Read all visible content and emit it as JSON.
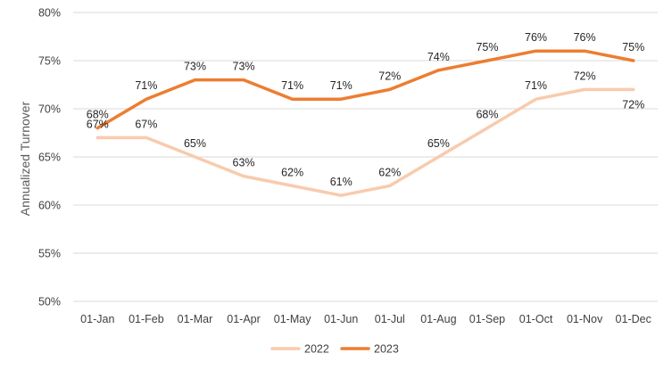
{
  "chart_data": {
    "type": "line",
    "categories": [
      "01-Jan",
      "01-Feb",
      "01-Mar",
      "01-Apr",
      "01-May",
      "01-Jun",
      "01-Jul",
      "01-Aug",
      "01-Sep",
      "01-Oct",
      "01-Nov",
      "01-Dec"
    ],
    "series": [
      {
        "name": "2022",
        "color": "#f8cbad",
        "values": [
          67,
          67,
          65,
          63,
          62,
          61,
          62,
          65,
          68,
          71,
          72,
          72
        ],
        "labels": [
          "67%",
          "67%",
          "65%",
          "63%",
          "62%",
          "61%",
          "62%",
          "65%",
          "68%",
          "71%",
          "72%",
          "72%"
        ],
        "label_position": [
          "above",
          "above",
          "above",
          "above",
          "above",
          "above",
          "above",
          "above",
          "above",
          "above",
          "above",
          "below"
        ]
      },
      {
        "name": "2023",
        "color": "#ed7d31",
        "values": [
          68,
          71,
          73,
          73,
          71,
          71,
          72,
          74,
          75,
          76,
          76,
          75
        ],
        "labels": [
          "68%",
          "71%",
          "73%",
          "73%",
          "71%",
          "71%",
          "72%",
          "74%",
          "75%",
          "76%",
          "76%",
          "75%"
        ],
        "label_position": [
          "above",
          "above",
          "above",
          "above",
          "above",
          "above",
          "above",
          "above",
          "above",
          "above",
          "above",
          "above"
        ]
      }
    ],
    "title": "",
    "xlabel": "",
    "ylabel": "Annualized Turnover",
    "ylim": [
      50,
      80
    ],
    "yticks": [
      50,
      55,
      60,
      65,
      70,
      75,
      80
    ],
    "ytick_labels": [
      "50%",
      "55%",
      "60%",
      "65%",
      "70%",
      "75%",
      "80%"
    ],
    "grid": "horizontal",
    "gridline_color": "#d9d9d9",
    "legend_position": "bottom"
  }
}
